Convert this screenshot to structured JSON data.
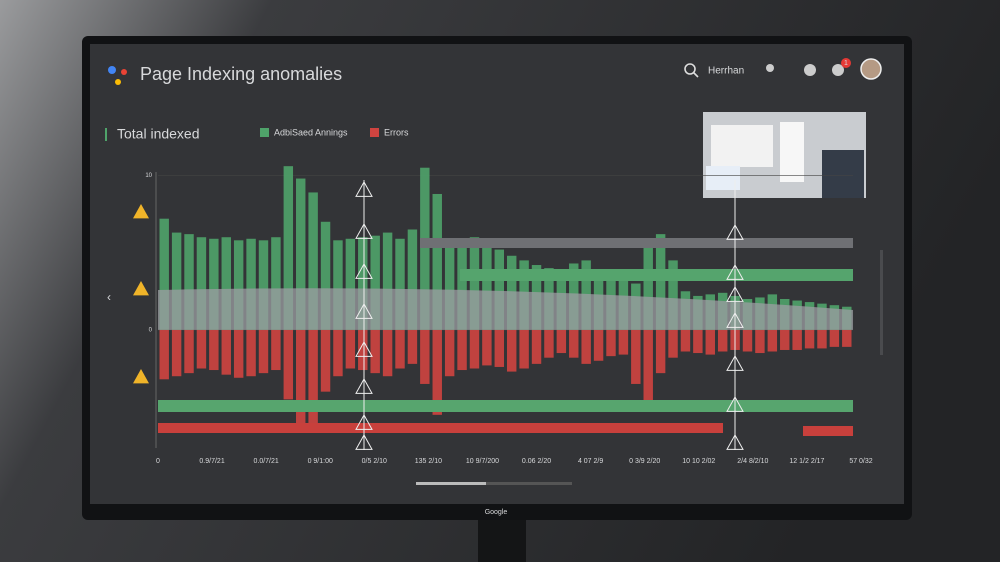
{
  "header": {
    "title": "Page Indexing anomalies",
    "user": "Herrhan",
    "badge": "1"
  },
  "brand": "Google",
  "chart_data": {
    "type": "bar",
    "title": "Total indexed",
    "series": [
      {
        "name": "AdbiSaed Annings",
        "color": "#4fa36a",
        "values": [
          7.2,
          6.3,
          6.2,
          6.0,
          5.9,
          6.0,
          5.8,
          5.9,
          5.8,
          6.0,
          10.6,
          9.8,
          8.9,
          7.0,
          5.8,
          5.9,
          6.0,
          6.1,
          6.3,
          5.9,
          6.5,
          10.5,
          8.8,
          5.6,
          5.8,
          6.0,
          5.7,
          5.2,
          4.8,
          4.5,
          4.2,
          4.0,
          3.9,
          4.3,
          4.5,
          3.8,
          3.5,
          3.3,
          3.0,
          5.8,
          6.2,
          4.5,
          2.5,
          2.2,
          2.3,
          2.4,
          2.2,
          2.0,
          2.1,
          2.3,
          2.0,
          1.9,
          1.8,
          1.7,
          1.6,
          1.5
        ]
      },
      {
        "name": "Errors",
        "color": "#cf4440",
        "values": [
          -3.2,
          -3,
          -2.8,
          -2.5,
          -2.6,
          -2.9,
          -3.1,
          -3,
          -2.8,
          -2.6,
          -4.5,
          -6.5,
          -6.2,
          -4,
          -3,
          -2.5,
          -2.6,
          -2.8,
          -3.0,
          -2.5,
          -2.2,
          -3.5,
          -5.5,
          -3.0,
          -2.6,
          -2.5,
          -2.3,
          -2.4,
          -2.7,
          -2.5,
          -2.2,
          -1.8,
          -1.5,
          -1.8,
          -2.2,
          -2.0,
          -1.7,
          -1.6,
          -3.5,
          -5.0,
          -2.8,
          -1.8,
          -1.4,
          -1.5,
          -1.6,
          -1.4,
          -1.3,
          -1.4,
          -1.5,
          -1.4,
          -1.3,
          -1.3,
          -1.2,
          -1.2,
          -1.1,
          -1.1
        ]
      }
    ],
    "x_tick_labels": [
      "0",
      "0.9/7/21",
      "0.0/7/21",
      "0 9/1:00",
      "0/5 2/10",
      "135 2/10",
      "10 9/7/200",
      "0.06 2/20",
      "4 07 2/9",
      "0 3/9 2/20",
      "10 10 2/02",
      "2/4 8/2/10",
      "12 1/2 2/17",
      "57 0/32"
    ],
    "ylim": [
      -7,
      11
    ],
    "yticks": [
      10,
      0
    ],
    "grid": true
  }
}
